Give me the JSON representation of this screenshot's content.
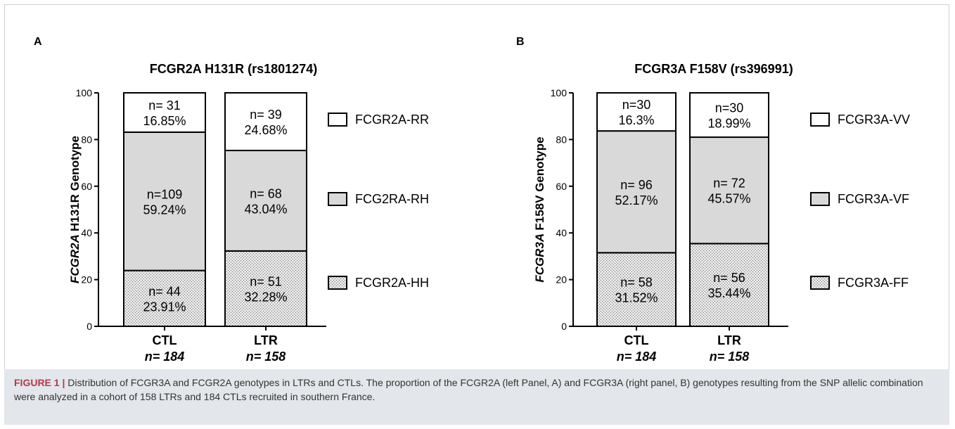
{
  "colors": {
    "rr": "#ffffff",
    "rh": "#d9d9d9",
    "hh": "#d4d4d4",
    "stroke": "#000000",
    "caption_bg": "#e3e6ea",
    "caption_label": "#b23a48"
  },
  "caption": {
    "label": "FIGURE 1 |",
    "text": "Distribution of FCGR3A and FCGR2A genotypes in LTRs and CTLs. The proportion of the FCGR2A (left Panel, A) and FCGR3A (right panel, B) genotypes resulting from the SNP allelic combination were analyzed in a cohort of 158 LTRs and 184 CTLs recruited in southern France."
  },
  "chart_data": [
    {
      "type": "bar",
      "stacked": true,
      "panel_label": "A",
      "title": "FCGR2A H131R (rs1801274)",
      "ylabel": "FCGR2A H131R Genotype",
      "ylim": [
        0,
        100
      ],
      "yticks": [
        "0",
        "20",
        "40",
        "60",
        "80",
        "100"
      ],
      "categories": [
        "CTL",
        "LTR"
      ],
      "category_n": [
        "n= 184",
        "n= 158"
      ],
      "series": [
        {
          "name": "FCGR2A-HH",
          "values": [
            23.91,
            32.28
          ],
          "labels": [
            [
              "n= 44",
              "23.91%"
            ],
            [
              "n= 51",
              "32.28%"
            ]
          ],
          "pattern": "dots"
        },
        {
          "name": "FCG2RA-RH",
          "values": [
            59.24,
            43.04
          ],
          "labels": [
            [
              "n=109",
              "59.24%"
            ],
            [
              "n= 68",
              "43.04%"
            ]
          ],
          "pattern": "grey"
        },
        {
          "name": "FCGR2A-RR",
          "values": [
            16.85,
            24.68
          ],
          "labels": [
            [
              "n= 31",
              "16.85%"
            ],
            [
              "n= 39",
              "24.68%"
            ]
          ],
          "pattern": "white"
        }
      ]
    },
    {
      "type": "bar",
      "stacked": true,
      "panel_label": "B",
      "title": "FCGR3A F158V (rs396991)",
      "ylabel": "FCGR3A F158V Genotype",
      "ylim": [
        0,
        100
      ],
      "yticks": [
        "0",
        "20",
        "40",
        "60",
        "80",
        "100"
      ],
      "categories": [
        "CTL",
        "LTR"
      ],
      "category_n": [
        "n= 184",
        "n= 158"
      ],
      "series": [
        {
          "name": "FCGR3A-FF",
          "values": [
            31.52,
            35.44
          ],
          "labels": [
            [
              "n= 58",
              "31.52%"
            ],
            [
              "n= 56",
              "35.44%"
            ]
          ],
          "pattern": "dots"
        },
        {
          "name": "FCGR3A-VF",
          "values": [
            52.17,
            45.57
          ],
          "labels": [
            [
              "n= 96",
              "52.17%"
            ],
            [
              "n= 72",
              "45.57%"
            ]
          ],
          "pattern": "grey"
        },
        {
          "name": "FCGR3A-VV",
          "values": [
            16.3,
            18.99
          ],
          "labels": [
            [
              "n=30",
              "16.3%"
            ],
            [
              "n=30",
              "18.99%"
            ]
          ],
          "pattern": "white"
        }
      ]
    }
  ]
}
